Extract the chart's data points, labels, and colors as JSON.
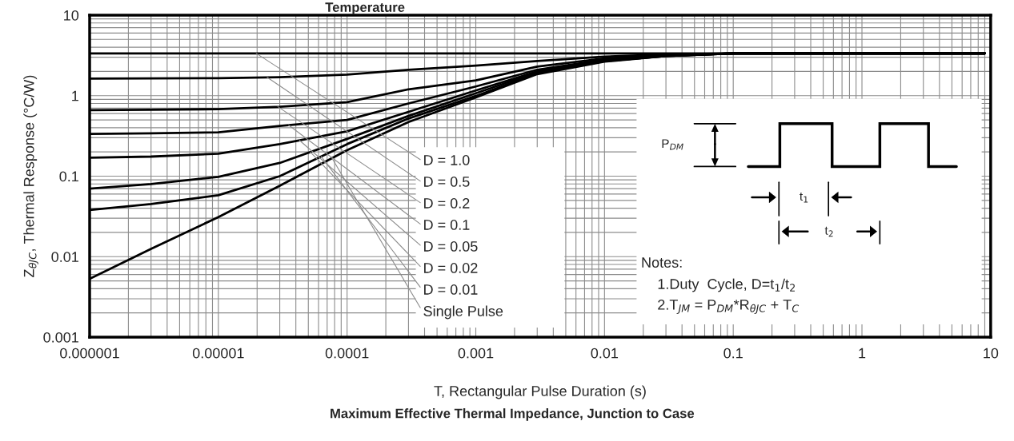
{
  "chart_data": {
    "type": "line",
    "title": "Temperature",
    "xlabel": "T, Rectangular Pulse Duration (s)",
    "ylabel": "Z$_{θJC}$, Thermal Response (°C/W)",
    "log": "xy",
    "grid": true,
    "line_style": "solid",
    "x": [
      1e-06,
      3e-06,
      1e-05,
      3e-05,
      0.0001,
      0.0003,
      0.001,
      0.003,
      0.01,
      0.03,
      0.1,
      9
    ],
    "xlim": [
      1e-06,
      10
    ],
    "ylim": [
      0.001,
      10
    ],
    "xticks": [
      {
        "value": 1e-06,
        "label": "0.000001"
      },
      {
        "value": 1e-05,
        "label": "0.00001"
      },
      {
        "value": 0.0001,
        "label": "0.0001"
      },
      {
        "value": 0.001,
        "label": "0.001"
      },
      {
        "value": 0.01,
        "label": "0.01"
      },
      {
        "value": 0.1,
        "label": "0.1"
      },
      1,
      10
    ],
    "yticks": [
      {
        "value": 0.001,
        "label": "0.001"
      },
      {
        "value": 0.01,
        "label": "0.01"
      },
      {
        "value": 0.1,
        "label": "0.1"
      },
      1,
      10
    ],
    "series": [
      {
        "name": "D = 1.0",
        "color": "#000000",
        "values": [
          3.35,
          3.35,
          3.35,
          3.35,
          3.35,
          3.35,
          3.35,
          3.35,
          3.35,
          3.35,
          3.35,
          3.35
        ]
      },
      {
        "name": "D = 0.5",
        "color": "#000000",
        "values": [
          1.63,
          1.64,
          1.65,
          1.7,
          1.83,
          2.1,
          2.36,
          2.7,
          3.05,
          3.25,
          3.35,
          3.35
        ]
      },
      {
        "name": "D = 0.2",
        "color": "#000000",
        "values": [
          0.66,
          0.67,
          0.68,
          0.73,
          0.83,
          1.2,
          1.55,
          2.3,
          2.9,
          3.2,
          3.35,
          3.35
        ]
      },
      {
        "name": "D = 0.1",
        "color": "#000000",
        "values": [
          0.335,
          0.34,
          0.35,
          0.42,
          0.5,
          0.8,
          1.3,
          2.1,
          2.8,
          3.15,
          3.35,
          3.35
        ]
      },
      {
        "name": "D = 0.05",
        "color": "#000000",
        "values": [
          0.17,
          0.175,
          0.19,
          0.25,
          0.36,
          0.63,
          1.16,
          2.0,
          2.75,
          3.15,
          3.35,
          3.35
        ]
      },
      {
        "name": "D = 0.02",
        "color": "#000000",
        "values": [
          0.07,
          0.08,
          0.098,
          0.146,
          0.29,
          0.56,
          1.07,
          1.95,
          2.7,
          3.1,
          3.35,
          3.35
        ]
      },
      {
        "name": "D = 0.01",
        "color": "#000000",
        "values": [
          0.038,
          0.045,
          0.058,
          0.1,
          0.25,
          0.52,
          0.99,
          1.9,
          2.7,
          3.1,
          3.35,
          3.35
        ]
      },
      {
        "name": "Single Pulse",
        "color": "#000000",
        "values": [
          0.0053,
          0.0125,
          0.031,
          0.076,
          0.21,
          0.47,
          0.95,
          1.85,
          2.65,
          3.1,
          3.35,
          3.35
        ]
      }
    ],
    "annotations": [
      "Maximum Effective Thermal Impedance, Junction to Case",
      "P$_{DM}$",
      "t$_{1}$",
      "t$_{2}$",
      "Notes:",
      "1.Duty  Cycle, D=t$_{1}$/t$_{2}$",
      "2.T$_{JM}$ = P$_{DM}$*R$_{θJC}$ + T$_{C}$"
    ]
  }
}
